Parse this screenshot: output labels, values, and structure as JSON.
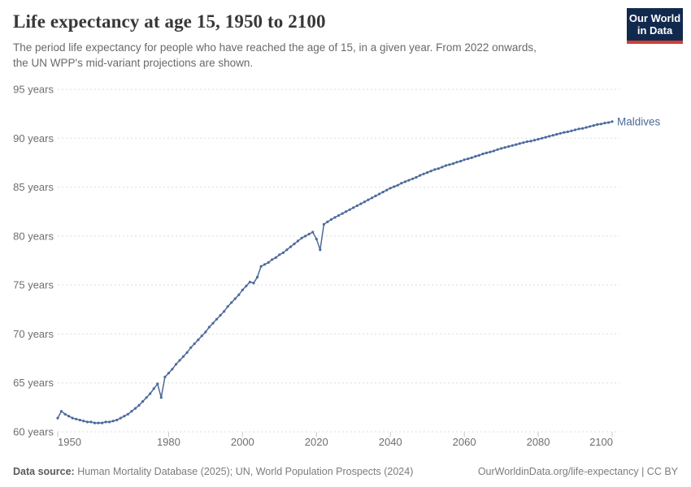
{
  "header": {
    "title": "Life expectancy at age 15, 1950 to 2100",
    "subtitle_line1": "The period life expectancy for people who have reached the age of 15, in a given year. From 2022 onwards,",
    "subtitle_line2": "the UN WPP's mid-variant projections are shown.",
    "logo": {
      "line1": "Our World",
      "line2": "in Data",
      "bg_color": "#12294E",
      "accent_color": "#CF3F36"
    }
  },
  "footer": {
    "source_label": "Data source:",
    "source_text": " Human Mortality Database (2025); UN, World Population Prospects (2024)",
    "link_text": "OurWorldinData.org/life-expectancy | CC BY"
  },
  "chart_data": {
    "type": "line",
    "title": "Life expectancy at age 15, 1950 to 2100",
    "xlim": [
      1950,
      2100
    ],
    "ylim": [
      60,
      95
    ],
    "x_ticks": [
      1950,
      1980,
      2000,
      2020,
      2040,
      2060,
      2080,
      2100
    ],
    "y_ticks": [
      60,
      65,
      70,
      75,
      80,
      85,
      90,
      95
    ],
    "y_tick_suffix": " years",
    "grid": "horizontal-dashed",
    "legend_position": "end-of-line-label",
    "projection_note": "values from 2022 onward are UN WPP mid-variant projections",
    "colors": {
      "line": "#4C6A9C",
      "grid": "#dedede",
      "tick": "#c4c4c4",
      "axis_text": "#6e6e6e"
    },
    "series": [
      {
        "name": "Maldives",
        "color": "#4C6A9C",
        "start_year": 1950,
        "values": [
          61.4,
          62.1,
          61.8,
          61.6,
          61.4,
          61.3,
          61.2,
          61.1,
          61.0,
          61.0,
          60.9,
          60.9,
          60.9,
          61.0,
          61.0,
          61.1,
          61.2,
          61.4,
          61.6,
          61.8,
          62.1,
          62.4,
          62.7,
          63.1,
          63.5,
          63.9,
          64.4,
          64.9,
          63.5,
          65.6,
          66.0,
          66.4,
          66.9,
          67.3,
          67.7,
          68.1,
          68.6,
          69.0,
          69.4,
          69.8,
          70.2,
          70.7,
          71.1,
          71.5,
          71.9,
          72.3,
          72.8,
          73.2,
          73.6,
          74.0,
          74.5,
          74.9,
          75.3,
          75.2,
          75.8,
          76.9,
          77.1,
          77.3,
          77.6,
          77.8,
          78.1,
          78.3,
          78.6,
          78.9,
          79.2,
          79.5,
          79.8,
          80.0,
          80.2,
          80.4,
          79.7,
          78.6,
          81.2,
          81.45,
          81.7,
          81.9,
          82.1,
          82.3,
          82.5,
          82.7,
          82.9,
          83.1,
          83.3,
          83.5,
          83.7,
          83.9,
          84.1,
          84.3,
          84.5,
          84.7,
          84.9,
          85.05,
          85.2,
          85.4,
          85.55,
          85.7,
          85.85,
          86.0,
          86.2,
          86.35,
          86.5,
          86.65,
          86.8,
          86.9,
          87.05,
          87.2,
          87.3,
          87.4,
          87.55,
          87.65,
          87.8,
          87.9,
          88.0,
          88.15,
          88.25,
          88.4,
          88.5,
          88.6,
          88.7,
          88.85,
          88.95,
          89.05,
          89.15,
          89.25,
          89.35,
          89.45,
          89.55,
          89.65,
          89.7,
          89.8,
          89.9,
          90.0,
          90.1,
          90.2,
          90.3,
          90.4,
          90.5,
          90.6,
          90.65,
          90.75,
          90.85,
          90.95,
          91.0,
          91.1,
          91.2,
          91.3,
          91.4,
          91.45,
          91.55,
          91.6,
          91.7
        ]
      }
    ]
  }
}
